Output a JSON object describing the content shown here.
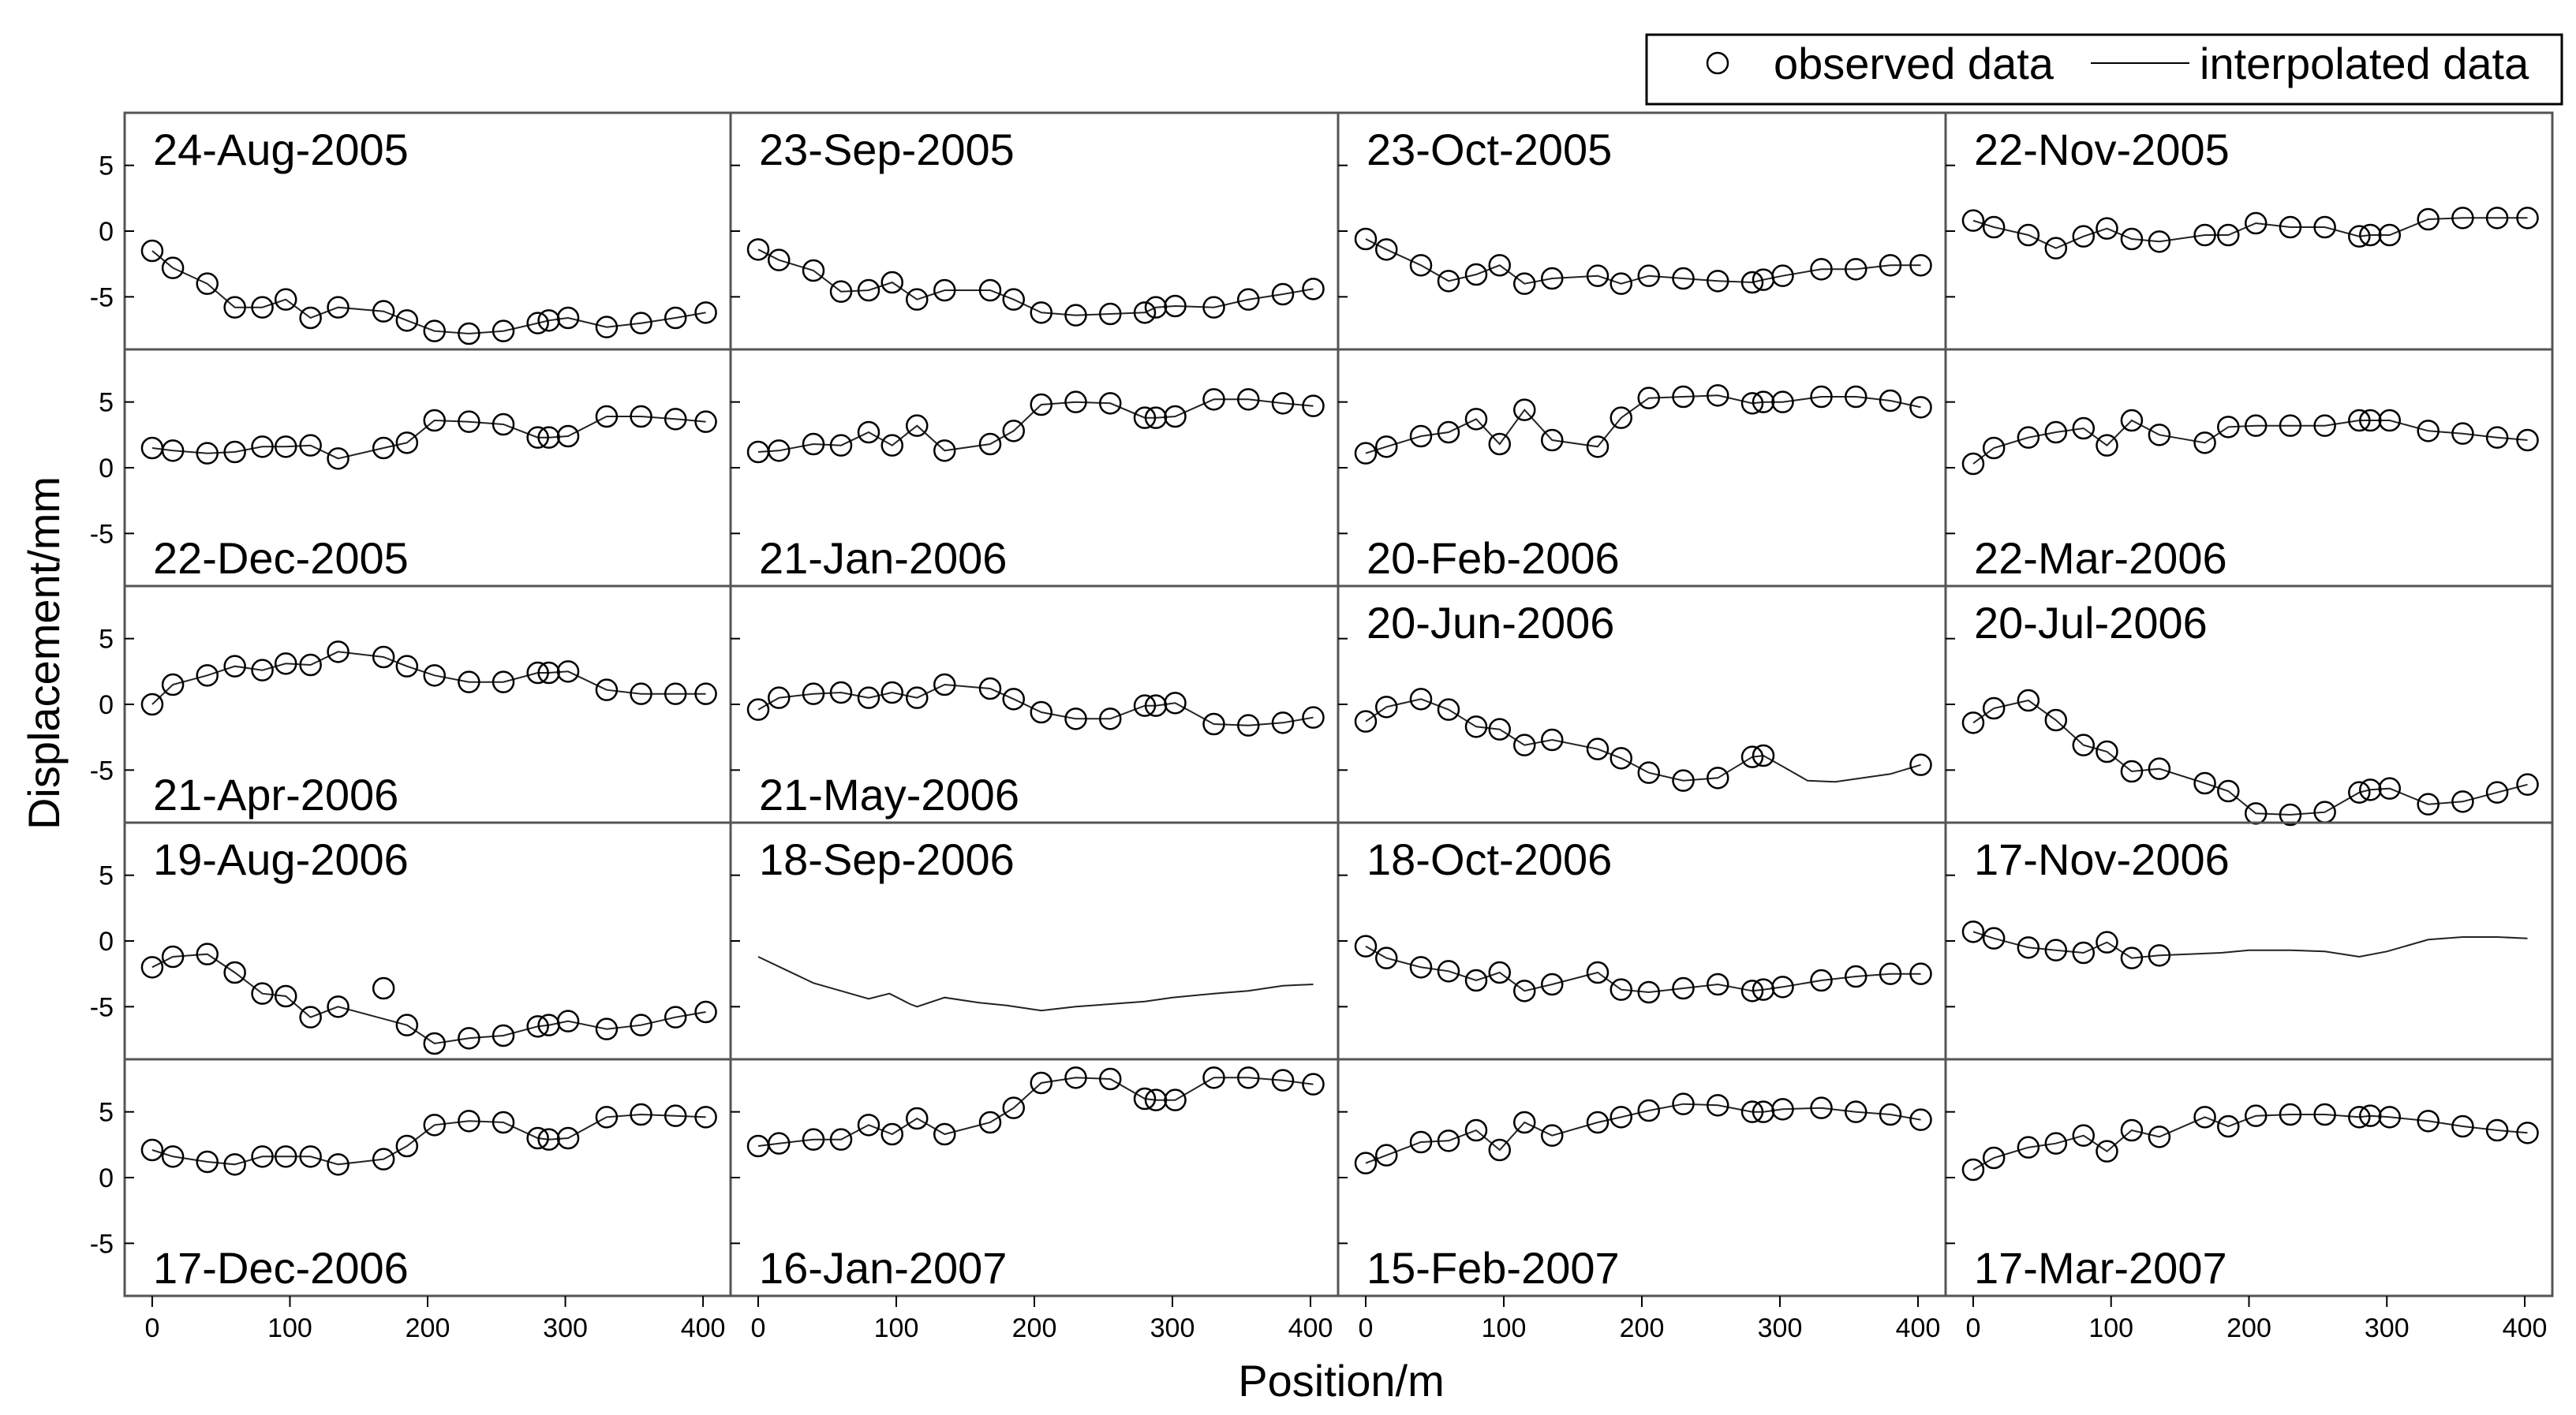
{
  "chart_data": {
    "type": "line",
    "xlabel": "Position/m",
    "ylabel": "Displacement/mm",
    "xlim": [
      -20,
      420
    ],
    "ylim": [
      -9,
      9
    ],
    "xticks": [
      0,
      100,
      200,
      300,
      400
    ],
    "yticks": [
      5,
      0,
      -5
    ],
    "grid": false,
    "legend": {
      "placement": "top-right",
      "entries": [
        "observed data",
        "interpolated data"
      ]
    },
    "series_names": [
      "observed data",
      "interpolated data"
    ],
    "panels": [
      {
        "date": "24-Aug-2005",
        "x": [
          0,
          15,
          40,
          60,
          80,
          97,
          115,
          135,
          168,
          185,
          205,
          230,
          255,
          280,
          288,
          302,
          330,
          355,
          380,
          402
        ],
        "y": [
          -1.5,
          -2.8,
          -4.0,
          -5.8,
          -5.8,
          -5.2,
          -6.6,
          -5.8,
          -6.1,
          -6.8,
          -7.6,
          -7.8,
          -7.6,
          -7.0,
          -6.8,
          -6.6,
          -7.3,
          -7.0,
          -6.6,
          -6.2
        ],
        "observed": true
      },
      {
        "date": "23-Sep-2005",
        "x": [
          0,
          15,
          40,
          60,
          80,
          97,
          115,
          135,
          168,
          185,
          205,
          230,
          255,
          280,
          288,
          302,
          330,
          355,
          380,
          402
        ],
        "y": [
          -1.4,
          -2.2,
          -3.0,
          -4.6,
          -4.5,
          -3.9,
          -5.2,
          -4.5,
          -4.5,
          -5.2,
          -6.2,
          -6.4,
          -6.3,
          -6.2,
          -5.8,
          -5.7,
          -5.8,
          -5.2,
          -4.8,
          -4.4
        ],
        "observed": true
      },
      {
        "date": "23-Oct-2005",
        "x": [
          0,
          15,
          40,
          60,
          80,
          97,
          115,
          135,
          168,
          185,
          205,
          230,
          255,
          280,
          288,
          302,
          330,
          355,
          380,
          402
        ],
        "y": [
          -0.6,
          -1.4,
          -2.6,
          -3.8,
          -3.3,
          -2.6,
          -4.0,
          -3.6,
          -3.4,
          -4.0,
          -3.4,
          -3.6,
          -3.8,
          -3.9,
          -3.7,
          -3.4,
          -2.9,
          -2.9,
          -2.6,
          -2.6
        ],
        "observed": true
      },
      {
        "date": "22-Nov-2005",
        "x": [
          0,
          15,
          40,
          60,
          80,
          97,
          115,
          135,
          168,
          185,
          205,
          230,
          255,
          280,
          288,
          302,
          330,
          355,
          380,
          402
        ],
        "y": [
          0.8,
          0.3,
          -0.3,
          -1.3,
          -0.4,
          0.2,
          -0.6,
          -0.8,
          -0.3,
          -0.3,
          0.6,
          0.3,
          0.3,
          -0.4,
          -0.3,
          -0.3,
          0.9,
          1.0,
          1.0,
          1.0
        ],
        "observed": true
      },
      {
        "date": "22-Dec-2005",
        "x": [
          0,
          15,
          40,
          60,
          80,
          97,
          115,
          135,
          168,
          185,
          205,
          230,
          255,
          280,
          288,
          302,
          330,
          355,
          380,
          402
        ],
        "y": [
          1.5,
          1.3,
          1.1,
          1.2,
          1.6,
          1.6,
          1.7,
          0.7,
          1.5,
          1.9,
          3.6,
          3.5,
          3.3,
          2.3,
          2.3,
          2.4,
          3.9,
          3.9,
          3.7,
          3.5
        ],
        "observed": true
      },
      {
        "date": "21-Jan-2006",
        "x": [
          0,
          15,
          40,
          60,
          80,
          97,
          115,
          135,
          168,
          185,
          205,
          230,
          255,
          280,
          288,
          302,
          330,
          355,
          380,
          402
        ],
        "y": [
          1.2,
          1.3,
          1.8,
          1.7,
          2.7,
          1.7,
          3.2,
          1.3,
          1.8,
          2.8,
          4.8,
          5.0,
          4.9,
          3.8,
          3.8,
          3.9,
          5.2,
          5.2,
          4.9,
          4.7
        ],
        "observed": true
      },
      {
        "date": "20-Feb-2006",
        "x": [
          0,
          15,
          40,
          60,
          80,
          97,
          115,
          135,
          168,
          185,
          205,
          230,
          255,
          280,
          288,
          302,
          330,
          355,
          380,
          402
        ],
        "y": [
          1.1,
          1.6,
          2.4,
          2.7,
          3.7,
          1.8,
          4.4,
          2.1,
          1.6,
          3.8,
          5.3,
          5.4,
          5.5,
          4.9,
          5.0,
          5.0,
          5.4,
          5.4,
          5.1,
          4.6
        ],
        "observed": true
      },
      {
        "date": "22-Mar-2006",
        "x": [
          0,
          15,
          40,
          60,
          80,
          97,
          115,
          135,
          168,
          185,
          205,
          230,
          255,
          280,
          288,
          302,
          330,
          355,
          380,
          402
        ],
        "y": [
          0.3,
          1.5,
          2.3,
          2.7,
          3.0,
          1.7,
          3.6,
          2.5,
          1.9,
          3.1,
          3.2,
          3.2,
          3.2,
          3.6,
          3.6,
          3.6,
          2.8,
          2.6,
          2.3,
          2.1
        ],
        "observed": true
      },
      {
        "date": "21-Apr-2006",
        "x": [
          0,
          15,
          40,
          60,
          80,
          97,
          115,
          135,
          168,
          185,
          205,
          230,
          255,
          280,
          288,
          302,
          330,
          355,
          380,
          402
        ],
        "y": [
          0.0,
          1.5,
          2.2,
          2.9,
          2.6,
          3.1,
          3.0,
          4.0,
          3.6,
          2.9,
          2.2,
          1.7,
          1.7,
          2.4,
          2.4,
          2.5,
          1.1,
          0.8,
          0.8,
          0.8
        ],
        "observed": true
      },
      {
        "date": "21-May-2006",
        "x": [
          0,
          15,
          40,
          60,
          80,
          97,
          115,
          135,
          168,
          185,
          205,
          230,
          255,
          280,
          288,
          302,
          330,
          355,
          380,
          402
        ],
        "y": [
          -0.4,
          0.5,
          0.8,
          0.9,
          0.5,
          0.9,
          0.5,
          1.5,
          1.2,
          0.4,
          -0.6,
          -1.1,
          -1.1,
          -0.1,
          -0.1,
          0.1,
          -1.5,
          -1.6,
          -1.4,
          -1.0
        ],
        "observed": true
      },
      {
        "date": "20-Jun-2006",
        "x": [
          0,
          15,
          40,
          60,
          80,
          97,
          115,
          135,
          168,
          185,
          205,
          230,
          255,
          280,
          288,
          402
        ],
        "y": [
          -1.3,
          -0.2,
          0.4,
          -0.4,
          -1.7,
          -1.9,
          -3.1,
          -2.7,
          -3.4,
          -4.1,
          -5.2,
          -5.8,
          -5.6,
          -4.0,
          -3.9,
          -4.6
        ],
        "line_x": [
          0,
          15,
          40,
          60,
          80,
          97,
          115,
          135,
          168,
          185,
          205,
          230,
          255,
          280,
          288,
          300,
          320,
          340,
          360,
          380,
          402
        ],
        "line_y": [
          -1.3,
          -0.2,
          0.4,
          -0.4,
          -1.7,
          -1.9,
          -3.1,
          -2.7,
          -3.4,
          -4.1,
          -5.2,
          -5.8,
          -5.6,
          -4.0,
          -3.9,
          -4.6,
          -5.8,
          -5.9,
          -5.6,
          -5.3,
          -4.6
        ],
        "observed": true
      },
      {
        "date": "20-Jul-2006",
        "x": [
          0,
          15,
          40,
          60,
          80,
          97,
          115,
          135,
          168,
          185,
          205,
          230,
          255,
          280,
          288,
          302,
          330,
          355,
          380,
          402
        ],
        "y": [
          -1.4,
          -0.3,
          0.3,
          -1.2,
          -3.1,
          -3.6,
          -5.1,
          -4.9,
          -6.0,
          -6.6,
          -8.3,
          -8.4,
          -8.2,
          -6.7,
          -6.5,
          -6.4,
          -7.6,
          -7.4,
          -6.7,
          -6.1
        ],
        "observed": true
      },
      {
        "date": "19-Aug-2006",
        "x": [
          0,
          15,
          40,
          60,
          80,
          97,
          115,
          135,
          168,
          185,
          205,
          230,
          255,
          280,
          288,
          302,
          330,
          355,
          380,
          402
        ],
        "y": [
          -2.0,
          -1.2,
          -1.0,
          -2.4,
          -4.0,
          -4.2,
          -5.8,
          -5.0,
          -3.6,
          -6.4,
          -7.8,
          -7.4,
          -7.2,
          -6.5,
          -6.4,
          -6.1,
          -6.7,
          -6.4,
          -5.8,
          -5.4
        ],
        "line_x": [
          0,
          15,
          40,
          60,
          80,
          97,
          115,
          135,
          185,
          205,
          230,
          255,
          280,
          288,
          302,
          330,
          355,
          380,
          402
        ],
        "line_y": [
          -2.0,
          -1.2,
          -1.0,
          -2.4,
          -4.0,
          -4.2,
          -5.8,
          -5.0,
          -6.4,
          -7.8,
          -7.4,
          -7.2,
          -6.5,
          -6.4,
          -6.1,
          -6.7,
          -6.4,
          -5.8,
          -5.4
        ],
        "observed": true
      },
      {
        "date": "18-Sep-2006",
        "x": [],
        "y": [],
        "line_x": [
          0,
          20,
          40,
          60,
          80,
          95,
          110,
          115,
          135,
          160,
          180,
          205,
          230,
          255,
          280,
          300,
          330,
          355,
          380,
          402
        ],
        "line_y": [
          -1.2,
          -2.2,
          -3.2,
          -3.8,
          -4.4,
          -4.0,
          -4.8,
          -5.0,
          -4.3,
          -4.7,
          -4.9,
          -5.3,
          -5.0,
          -4.8,
          -4.6,
          -4.3,
          -4.0,
          -3.8,
          -3.4,
          -3.3
        ],
        "observed": false
      },
      {
        "date": "18-Oct-2006",
        "x": [
          0,
          15,
          40,
          60,
          80,
          97,
          115,
          135,
          168,
          185,
          205,
          230,
          255,
          280,
          288,
          302,
          330,
          355,
          380,
          402
        ],
        "y": [
          -0.4,
          -1.3,
          -2.0,
          -2.3,
          -3.0,
          -2.4,
          -3.8,
          -3.3,
          -2.4,
          -3.7,
          -3.9,
          -3.6,
          -3.3,
          -3.8,
          -3.7,
          -3.5,
          -3.0,
          -2.7,
          -2.5,
          -2.5
        ],
        "observed": true
      },
      {
        "date": "17-Nov-2006",
        "x": [
          0,
          15,
          40,
          60,
          80,
          97,
          115,
          135
        ],
        "y": [
          0.7,
          0.2,
          -0.5,
          -0.7,
          -0.9,
          -0.1,
          -1.3,
          -1.1
        ],
        "line_x": [
          0,
          15,
          40,
          60,
          80,
          97,
          115,
          135,
          180,
          200,
          230,
          255,
          280,
          300,
          330,
          355,
          380,
          402
        ],
        "line_y": [
          0.7,
          0.2,
          -0.5,
          -0.7,
          -0.9,
          -0.1,
          -1.3,
          -1.1,
          -0.9,
          -0.7,
          -0.7,
          -0.8,
          -1.2,
          -0.8,
          0.1,
          0.3,
          0.3,
          0.2
        ],
        "observed": true
      },
      {
        "date": "17-Dec-2006",
        "x": [
          0,
          15,
          40,
          60,
          80,
          97,
          115,
          135,
          168,
          185,
          205,
          230,
          255,
          280,
          288,
          302,
          330,
          355,
          380,
          402
        ],
        "y": [
          2.1,
          1.6,
          1.2,
          1.0,
          1.6,
          1.6,
          1.6,
          1.0,
          1.4,
          2.4,
          4.0,
          4.3,
          4.2,
          3.0,
          2.9,
          3.0,
          4.6,
          4.8,
          4.7,
          4.6
        ],
        "observed": true
      },
      {
        "date": "16-Jan-2007",
        "x": [
          0,
          15,
          40,
          60,
          80,
          97,
          115,
          135,
          168,
          185,
          205,
          230,
          255,
          280,
          288,
          302,
          330,
          355,
          380,
          402
        ],
        "y": [
          2.4,
          2.6,
          2.9,
          2.9,
          4.0,
          3.3,
          4.5,
          3.3,
          4.2,
          5.3,
          7.2,
          7.6,
          7.5,
          6.0,
          5.9,
          5.9,
          7.6,
          7.6,
          7.4,
          7.1
        ],
        "observed": true
      },
      {
        "date": "15-Feb-2007",
        "x": [
          0,
          15,
          40,
          60,
          80,
          97,
          115,
          135,
          168,
          185,
          205,
          230,
          255,
          280,
          288,
          302,
          330,
          355,
          380,
          402
        ],
        "y": [
          1.1,
          1.7,
          2.7,
          2.8,
          3.6,
          2.1,
          4.2,
          3.2,
          4.2,
          4.6,
          5.1,
          5.6,
          5.5,
          5.0,
          5.0,
          5.2,
          5.3,
          5.0,
          4.8,
          4.4
        ],
        "observed": true
      },
      {
        "date": "17-Mar-2007",
        "x": [
          0,
          15,
          40,
          60,
          80,
          97,
          115,
          135,
          168,
          185,
          205,
          230,
          255,
          280,
          288,
          302,
          330,
          355,
          380,
          402
        ],
        "y": [
          0.6,
          1.5,
          2.3,
          2.6,
          3.2,
          2.0,
          3.6,
          3.1,
          4.6,
          3.9,
          4.7,
          4.8,
          4.8,
          4.6,
          4.7,
          4.6,
          4.3,
          3.9,
          3.6,
          3.4
        ],
        "observed": true
      }
    ]
  }
}
